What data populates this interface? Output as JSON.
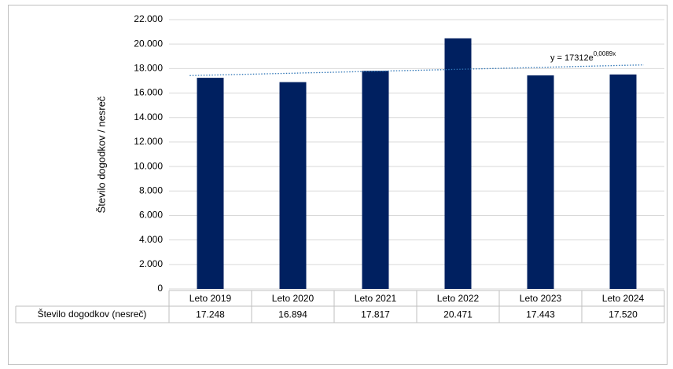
{
  "chart_data": {
    "type": "bar",
    "y_axis_label": "Število dogodkov / nesreč",
    "table_row_label": "Število dogodkov (nesreč)",
    "categories": [
      "Leto 2019",
      "Leto 2020",
      "Leto 2021",
      "Leto 2022",
      "Leto 2023",
      "Leto 2024"
    ],
    "values": [
      17248,
      16894,
      17817,
      20471,
      17443,
      17520
    ],
    "value_labels": [
      "17.248",
      "16.894",
      "17.817",
      "20.471",
      "17.443",
      "17.520"
    ],
    "color": "#002060",
    "ylim": [
      0,
      22000
    ],
    "yticks": [
      0,
      {
        "value": 2000,
        "label": "2.000"
      },
      {
        "value": 4000,
        "label": "4.000"
      },
      {
        "value": 6000,
        "label": "6.000"
      },
      {
        "value": 8000,
        "label": "8.000"
      },
      {
        "value": 10000,
        "label": "10.000"
      },
      {
        "value": 12000,
        "label": "12.000"
      },
      {
        "value": 14000,
        "label": "14.000"
      },
      {
        "value": 16000,
        "label": "16.000"
      },
      {
        "value": 18000,
        "label": "18.000"
      },
      {
        "value": 20000,
        "label": "20.000"
      },
      {
        "value": 22000,
        "label": "22.000"
      }
    ],
    "grid": true,
    "trendline": {
      "equation": "y = 17312e",
      "exponent": "0,0089x",
      "a": 17312,
      "b": 0.0089,
      "color": "#2e75b6"
    }
  }
}
